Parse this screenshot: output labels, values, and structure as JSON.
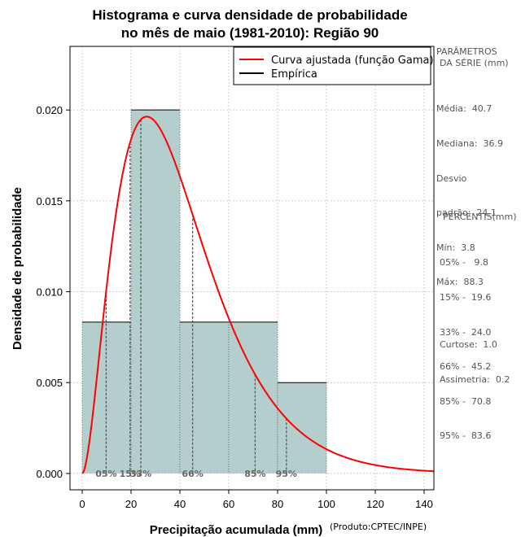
{
  "chart_data": {
    "type": "bar",
    "title": "Histograma e curva densidade de probabilidade",
    "subtitle": "no mês de maio (1981-2010): Região 90",
    "xlabel": "Precipitação acumulada (mm)",
    "ylabel": "Densidade de probabilidade",
    "xlim": [
      -5,
      144
    ],
    "ylim": [
      -0.0009,
      0.0235
    ],
    "x_ticks": [
      0,
      20,
      40,
      60,
      80,
      100,
      120,
      140
    ],
    "y_ticks": [
      0.0,
      0.005,
      0.01,
      0.015,
      0.02
    ],
    "y_tick_labels": [
      "0.000",
      "0.005",
      "0.010",
      "0.015",
      "0.020"
    ],
    "grid": true,
    "bins": [
      {
        "from": 0,
        "to": 20,
        "density": 0.00833
      },
      {
        "from": 20,
        "to": 40,
        "density": 0.02
      },
      {
        "from": 40,
        "to": 60,
        "density": 0.00833
      },
      {
        "from": 60,
        "to": 80,
        "density": 0.00833
      },
      {
        "from": 80,
        "to": 100,
        "density": 0.005
      }
    ],
    "fitted_curve": {
      "name": "Curva ajustada (função Gama)",
      "color": "#ff0000",
      "shape": 2.85,
      "rate": 0.07,
      "x_range": [
        0,
        144
      ]
    },
    "empirical": {
      "name": "Empírica",
      "color": "#000000"
    },
    "percentile_lines": [
      {
        "value": 9.8,
        "label": "05%"
      },
      {
        "value": 19.6,
        "label": "15%"
      },
      {
        "value": 24.0,
        "label": "33%"
      },
      {
        "value": 45.2,
        "label": "66%"
      },
      {
        "value": 70.8,
        "label": "85%"
      },
      {
        "value": 83.6,
        "label": "95%"
      }
    ],
    "legend_position": "top-right"
  },
  "colors": {
    "bar_fill": "#b4cece",
    "curve": "#ff0000",
    "grid": "#bbbbbb"
  },
  "credit": "(Produto:CPTEC/INPE)",
  "params": {
    "heading1": "PARÂMETROS",
    "heading2": "DA SÉRIE (mm)",
    "lines": [
      "Média:  40.7",
      "Mediana:  36.9",
      "Desvio",
      "padrão:  24.1",
      "Mín:  3.8",
      "Máx:  88.3"
    ]
  },
  "percentiles": {
    "heading": "PERCENTIS(mm)",
    "lines": [
      "05% -   9.8",
      "15% -  19.6",
      "33% -  24.0",
      "66% -  45.2",
      "85% -  70.8",
      "95% -  83.6"
    ]
  },
  "moments": {
    "lines": [
      "Curtose:  1.0",
      "Assimetria:  0.2"
    ]
  }
}
